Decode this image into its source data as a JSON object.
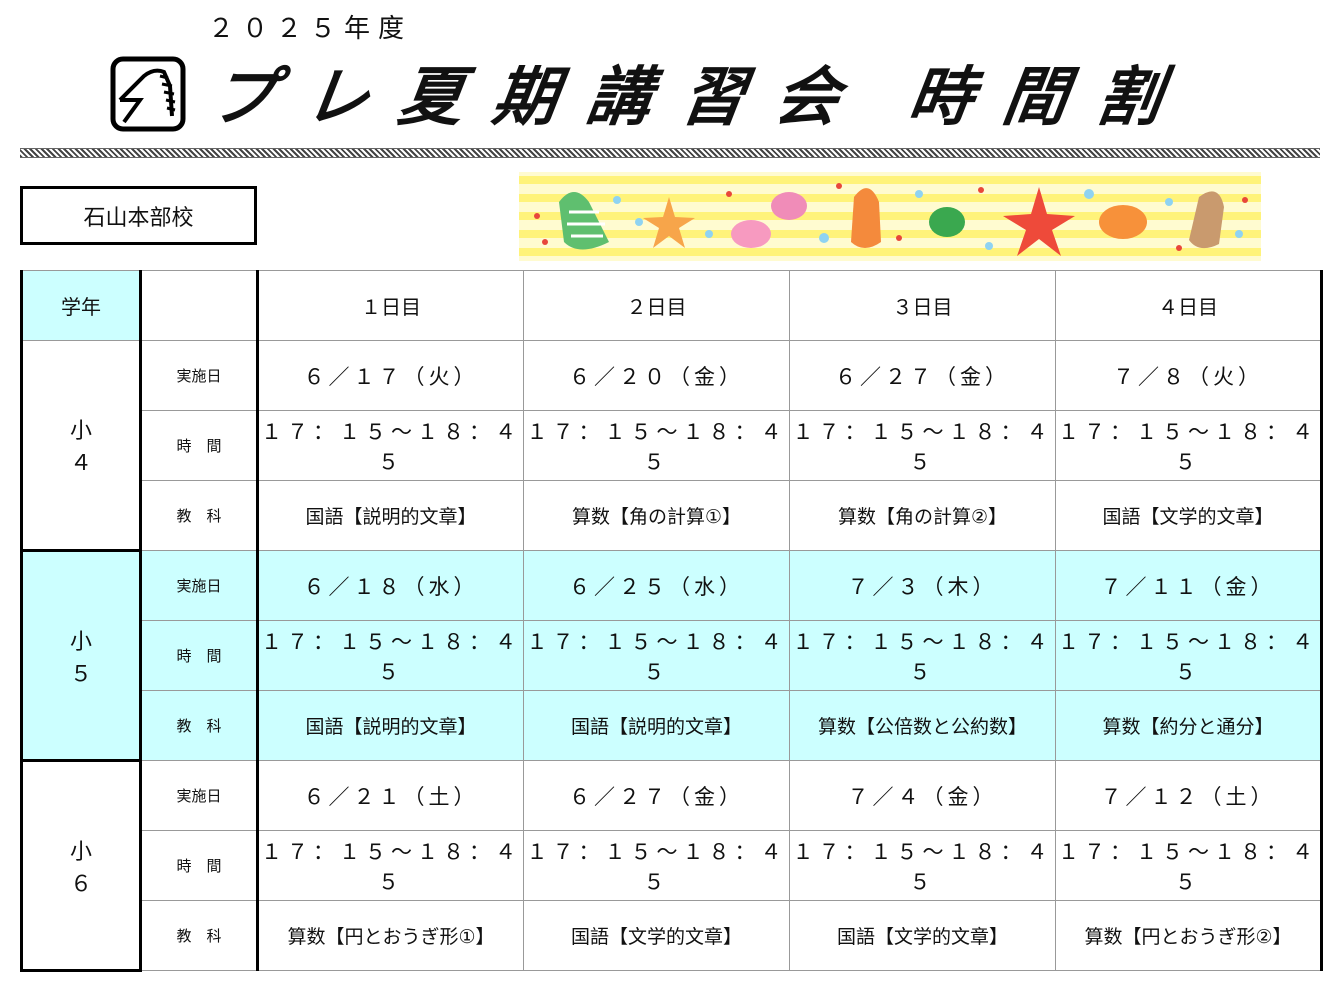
{
  "header": {
    "year": "２０２５年度",
    "title_main": "プレ夏期講習会",
    "title_sub": "時間割"
  },
  "school": "石山本部校",
  "table": {
    "grade_header": "学年",
    "days": [
      "１日目",
      "２日目",
      "３日目",
      "４日目"
    ],
    "row_labels": {
      "date": "実施日",
      "time": "時　間",
      "subject": "教　科"
    },
    "grades": [
      {
        "grade": "小　４",
        "highlight": false,
        "dates": [
          "６／１７（火）",
          "６／２０（金）",
          "６／２７（金）",
          "７／８（火）"
        ],
        "times": [
          "１７：１５～１８：４５",
          "１７：１５～１８：４５",
          "１７：１５～１８：４５",
          "１７：１５～１８：４５"
        ],
        "subjects": [
          "国語【説明的文章】",
          "算数【角の計算①】",
          "算数【角の計算②】",
          "国語【文学的文章】"
        ]
      },
      {
        "grade": "小　５",
        "highlight": true,
        "dates": [
          "６／１８（水）",
          "６／２５（水）",
          "７／３（木）",
          "７／１１（金）"
        ],
        "times": [
          "１７：１５～１８：４５",
          "１７：１５～１８：４５",
          "１７：１５～１８：４５",
          "１７：１５～１８：４５"
        ],
        "subjects": [
          "国語【説明的文章】",
          "国語【説明的文章】",
          "算数【公倍数と公約数】",
          "算数【約分と通分】"
        ]
      },
      {
        "grade": "小　６",
        "highlight": false,
        "dates": [
          "６／２１（土）",
          "６／２７（金）",
          "７／４（金）",
          "７／１２（土）"
        ],
        "times": [
          "１７：１５～１８：４５",
          "１７：１５～１８：４５",
          "１７：１５～１８：４５",
          "１７：１５～１８：４５"
        ],
        "subjects": [
          "算数【円とおうぎ形①】",
          "国語【文学的文章】",
          "国語【文学的文章】",
          "算数【円とおうぎ形②】"
        ]
      }
    ]
  },
  "colors": {
    "highlight": "#ccffff",
    "border": "#000000"
  },
  "icons": [
    "horse-logo-icon",
    "seashell-banner-icon"
  ]
}
